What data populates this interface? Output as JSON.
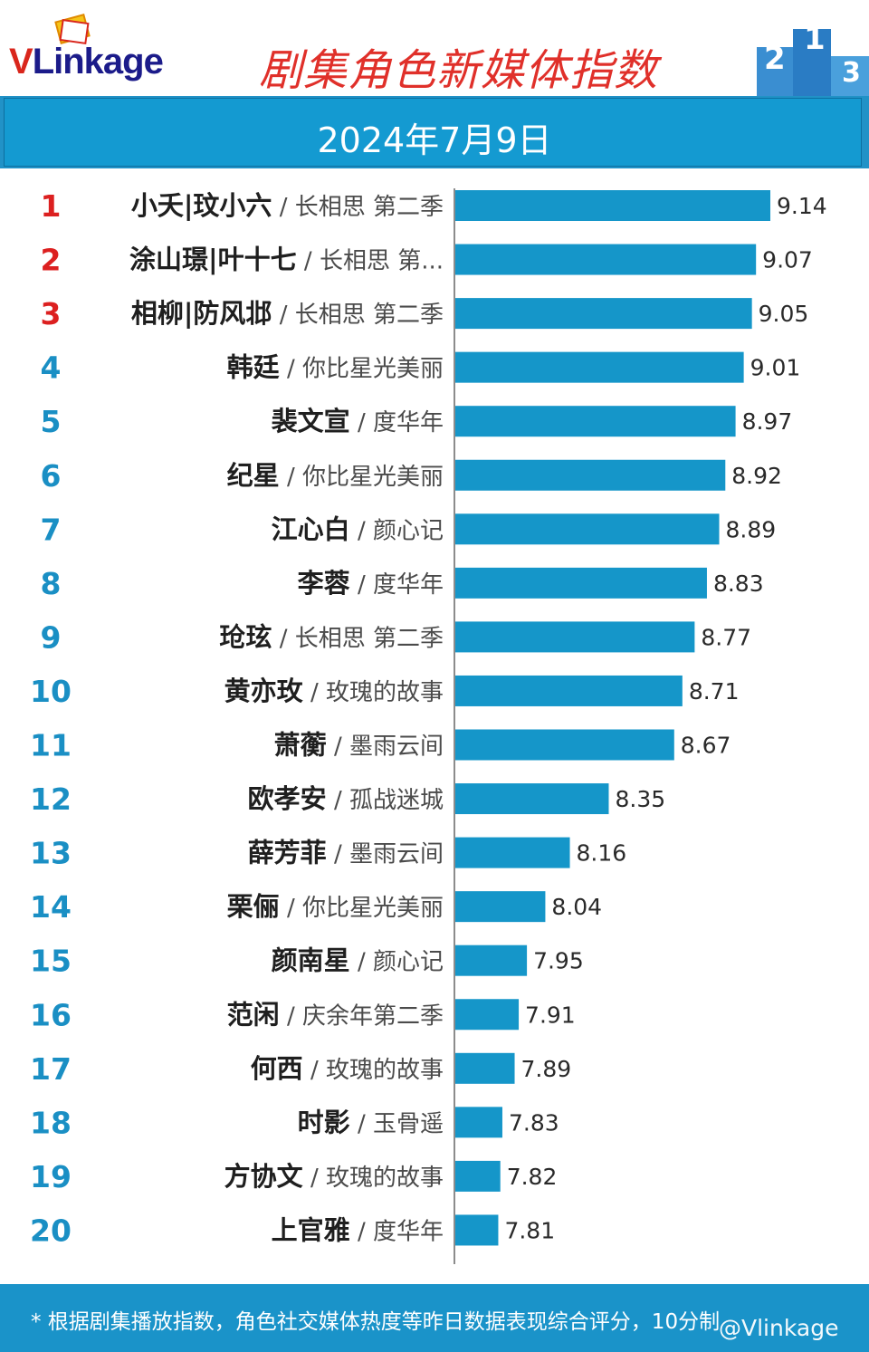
{
  "brand": {
    "logo_v": "V",
    "logo_rest": "Linkage"
  },
  "header": {
    "title": "剧集角色新媒体指数",
    "date": "2024年7月9日",
    "podium_numbers": [
      "2",
      "1",
      "3"
    ]
  },
  "footer": {
    "note": "* 根据剧集播放指数，角色社交媒体热度等昨日数据表现综合评分，10分制",
    "watermark": "@Vlinkage"
  },
  "colors": {
    "accent": "#1596c9",
    "rank_top": "#dc2020",
    "rank_rest": "#1a8fc4",
    "title": "#e0302a"
  },
  "chart_data": {
    "type": "bar",
    "title": "剧集角色新媒体指数",
    "subtitle": "2024年7月9日",
    "orientation": "horizontal",
    "xlim": [
      7.6,
      9.2
    ],
    "categories": [
      "小夭|玟小六 / 长相思 第二季",
      "涂山璟|叶十七 / 长相思 第...",
      "相柳|防风邶 / 长相思 第二季",
      "韩廷 / 你比星光美丽",
      "裴文宣 / 度华年",
      "纪星 / 你比星光美丽",
      "江心白 / 颜心记",
      "李蓉 / 度华年",
      "玱玹 / 长相思 第二季",
      "黄亦玫 / 玫瑰的故事",
      "萧蘅 / 墨雨云间",
      "欧孝安 / 孤战迷城",
      "薛芳菲 / 墨雨云间",
      "栗俪 / 你比星光美丽",
      "颜南星 / 颜心记",
      "范闲 / 庆余年第二季",
      "何西 / 玫瑰的故事",
      "时影 / 玉骨遥",
      "方协文 / 玫瑰的故事",
      "上官雅 / 度华年"
    ],
    "ranks": [
      "1",
      "2",
      "3",
      "4",
      "5",
      "6",
      "7",
      "8",
      "9",
      "10",
      "11",
      "12",
      "13",
      "14",
      "15",
      "16",
      "17",
      "18",
      "19",
      "20"
    ],
    "names": [
      "小夭|玟小六",
      "涂山璟|叶十七",
      "相柳|防风邶",
      "韩廷",
      "裴文宣",
      "纪星",
      "江心白",
      "李蓉",
      "玱玹",
      "黄亦玫",
      "萧蘅",
      "欧孝安",
      "薛芳菲",
      "栗俪",
      "颜南星",
      "范闲",
      "何西",
      "时影",
      "方协文",
      "上官雅"
    ],
    "dramas": [
      "长相思 第二季",
      "长相思 第...",
      "长相思 第二季",
      "你比星光美丽",
      "度华年",
      "你比星光美丽",
      "颜心记",
      "度华年",
      "长相思 第二季",
      "玫瑰的故事",
      "墨雨云间",
      "孤战迷城",
      "墨雨云间",
      "你比星光美丽",
      "颜心记",
      "庆余年第二季",
      "玫瑰的故事",
      "玉骨遥",
      "玫瑰的故事",
      "度华年"
    ],
    "values": [
      9.14,
      9.07,
      9.05,
      9.01,
      8.97,
      8.92,
      8.89,
      8.83,
      8.77,
      8.71,
      8.67,
      8.35,
      8.16,
      8.04,
      7.95,
      7.91,
      7.89,
      7.83,
      7.82,
      7.81
    ],
    "value_labels": [
      "9.14",
      "9.07",
      "9.05",
      "9.01",
      "8.97",
      "8.92",
      "8.89",
      "8.83",
      "8.77",
      "8.71",
      "8.67",
      "8.35",
      "8.16",
      "8.04",
      "7.95",
      "7.91",
      "7.89",
      "7.83",
      "7.82",
      "7.81"
    ],
    "separator": " / ",
    "legend": "none",
    "grid": false
  }
}
